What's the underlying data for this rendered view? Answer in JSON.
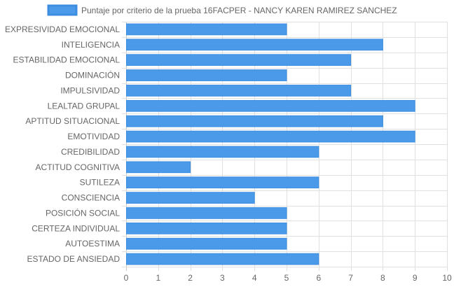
{
  "chart_data": {
    "type": "bar",
    "orientation": "horizontal",
    "legend": {
      "label": "Puntaje por criterio de la prueba 16FACPER - NANCY KAREN RAMIREZ SANCHEZ",
      "position": "top-center"
    },
    "categories": [
      "EXPRESIVIDAD EMOCIONAL",
      "INTELIGENCIA",
      "ESTABILIDAD EMOCIONAL",
      "DOMINACIÓN",
      "IMPULSIVIDAD",
      "LEALTAD GRUPAL",
      "APTITUD SITUACIONAL",
      "EMOTIVIDAD",
      "CREDIBILIDAD",
      "ACTITUD COGNITIVA",
      "SUTILEZA",
      "CONSCIENCIA",
      "POSICIÓN SOCIAL",
      "CERTEZA INDIVIDUAL",
      "AUTOESTIMA",
      "ESTADO DE ANSIEDAD"
    ],
    "series": [
      {
        "name": "Puntaje por criterio de la prueba 16FACPER - NANCY KAREN RAMIREZ SANCHEZ",
        "values": [
          5,
          8,
          7,
          5,
          7,
          9,
          8,
          9,
          6,
          2,
          6,
          4,
          5,
          5,
          5,
          6
        ]
      }
    ],
    "xlim": [
      0,
      10
    ],
    "xticks": [
      "0",
      "1",
      "2",
      "3",
      "4",
      "5",
      "6",
      "7",
      "8",
      "9",
      "10"
    ],
    "grid": true,
    "colors": {
      "bar_fill": "#4a9ae9",
      "bar_border": "#3d8ee0",
      "grid": "#e0e0e0",
      "text": "#666666"
    }
  }
}
